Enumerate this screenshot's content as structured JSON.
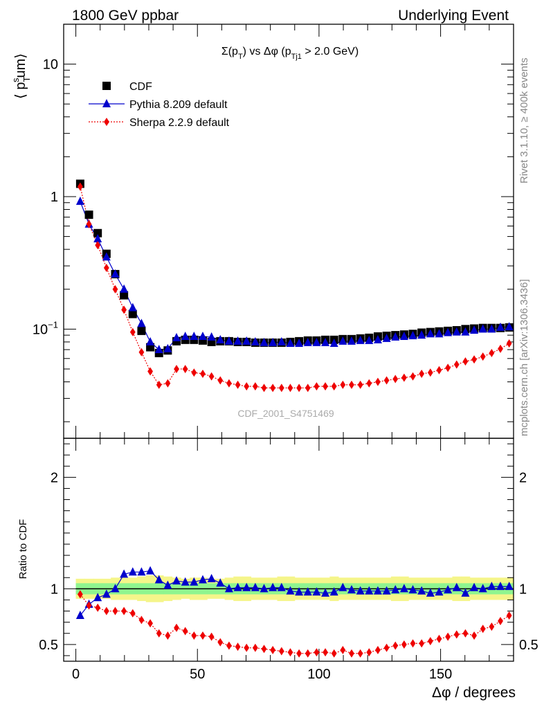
{
  "header": {
    "left": "1800 GeV ppbar",
    "right": "Underlying Event"
  },
  "side_labels": {
    "top": "Rivet 3.1.10, ≥ 400k events",
    "bottom": "mcplots.cern.ch [arXiv:1306.3436]"
  },
  "watermark": "CDF_2001_S4751469",
  "colors": {
    "data": "#000000",
    "pythia": "#0000cc",
    "sherpa": "#ee0000",
    "band_inner": "#8ff58f",
    "band_outer": "#f5f58a"
  },
  "chart_data": [
    {
      "type": "scatter",
      "title": "Σ(p_T) vs Δφ (p_Tj1 > 2.0 GeV)",
      "ylabel": "⟨ p_T^sum⟩",
      "yscale": "log",
      "ylim": [
        0.015,
        20
      ],
      "xlim": [
        -5,
        180
      ],
      "ytick_labels": [
        "10",
        "1",
        "10^-1"
      ],
      "legend": {
        "placement": "top-left",
        "entries": [
          "CDF",
          "Pythia 8.209 default",
          "Sherpa 2.2.9 default"
        ]
      },
      "x": [
        1.8,
        5.4,
        9.0,
        12.6,
        16.2,
        19.8,
        23.4,
        27.0,
        30.6,
        34.2,
        37.8,
        41.4,
        45.0,
        48.6,
        52.2,
        55.8,
        59.4,
        63.0,
        66.6,
        70.2,
        73.8,
        77.4,
        81.0,
        84.6,
        88.2,
        91.8,
        95.4,
        99.0,
        102.6,
        106.2,
        109.8,
        113.4,
        117.0,
        120.6,
        124.2,
        127.8,
        131.4,
        135.0,
        138.6,
        142.2,
        145.8,
        149.4,
        153.0,
        156.6,
        160.2,
        163.8,
        167.4,
        171.0,
        174.6,
        178.2
      ],
      "series": [
        {
          "name": "CDF",
          "marker": "square",
          "values": [
            1.25,
            0.73,
            0.53,
            0.37,
            0.26,
            0.18,
            0.13,
            0.097,
            0.073,
            0.066,
            0.069,
            0.081,
            0.083,
            0.083,
            0.082,
            0.08,
            0.081,
            0.081,
            0.08,
            0.08,
            0.079,
            0.079,
            0.079,
            0.079,
            0.08,
            0.081,
            0.082,
            0.082,
            0.083,
            0.083,
            0.084,
            0.084,
            0.085,
            0.086,
            0.088,
            0.089,
            0.09,
            0.091,
            0.092,
            0.094,
            0.095,
            0.096,
            0.097,
            0.098,
            0.1,
            0.101,
            0.102,
            0.102,
            0.102,
            0.103
          ]
        },
        {
          "name": "Pythia 8.209 default",
          "marker": "triangle",
          "values": [
            0.92,
            0.62,
            0.48,
            0.35,
            0.26,
            0.2,
            0.145,
            0.11,
            0.08,
            0.07,
            0.071,
            0.086,
            0.088,
            0.088,
            0.088,
            0.087,
            0.083,
            0.081,
            0.081,
            0.081,
            0.08,
            0.079,
            0.079,
            0.08,
            0.078,
            0.078,
            0.079,
            0.079,
            0.079,
            0.078,
            0.081,
            0.081,
            0.082,
            0.082,
            0.083,
            0.085,
            0.087,
            0.088,
            0.089,
            0.09,
            0.092,
            0.092,
            0.094,
            0.095,
            0.095,
            0.098,
            0.1,
            0.1,
            0.103,
            0.104
          ]
        },
        {
          "name": "Sherpa 2.2.9 default",
          "marker": "diamond",
          "values": [
            1.19,
            0.62,
            0.43,
            0.29,
            0.2,
            0.14,
            0.095,
            0.067,
            0.048,
            0.038,
            0.039,
            0.05,
            0.05,
            0.047,
            0.046,
            0.044,
            0.041,
            0.039,
            0.038,
            0.037,
            0.037,
            0.036,
            0.036,
            0.036,
            0.036,
            0.036,
            0.036,
            0.037,
            0.037,
            0.037,
            0.038,
            0.038,
            0.038,
            0.039,
            0.04,
            0.041,
            0.042,
            0.043,
            0.044,
            0.046,
            0.047,
            0.049,
            0.051,
            0.054,
            0.057,
            0.059,
            0.062,
            0.066,
            0.071,
            0.078
          ]
        }
      ]
    },
    {
      "type": "scatter",
      "ylabel": "Ratio to CDF",
      "xlabel": "Δφ / degrees",
      "ylim": [
        0.35,
        2.35
      ],
      "xlim": [
        -5,
        180
      ],
      "yticks": [
        0.5,
        1,
        2
      ],
      "xticks": [
        0,
        50,
        100,
        150
      ],
      "bands": {
        "inner": [
          0.95,
          1.05
        ],
        "outer_half_width": [
          0.09,
          0.09,
          0.09,
          0.09,
          0.1,
          0.1,
          0.1,
          0.11,
          0.12,
          0.12,
          0.11,
          0.1,
          0.09,
          0.1,
          0.1,
          0.09,
          0.09,
          0.1,
          0.11,
          0.11,
          0.1,
          0.1,
          0.1,
          0.11,
          0.11,
          0.1,
          0.1,
          0.1,
          0.1,
          0.11,
          0.1,
          0.1,
          0.1,
          0.1,
          0.1,
          0.1,
          0.11,
          0.11,
          0.1,
          0.1,
          0.1,
          0.1,
          0.1,
          0.11,
          0.11,
          0.1,
          0.1,
          0.1,
          0.1,
          0.1
        ]
      },
      "reference_line": 1,
      "series": [
        {
          "name": "Pythia 8.209 default",
          "marker": "triangle",
          "values": [
            0.76,
            0.86,
            0.92,
            0.95,
            1.0,
            1.13,
            1.15,
            1.15,
            1.16,
            1.08,
            1.03,
            1.07,
            1.06,
            1.06,
            1.08,
            1.09,
            1.05,
            1.0,
            1.01,
            1.01,
            1.01,
            1.0,
            1.01,
            1.01,
            0.98,
            0.97,
            0.97,
            0.97,
            0.96,
            0.97,
            1.01,
            0.99,
            0.98,
            0.98,
            0.98,
            0.98,
            0.99,
            1.0,
            0.99,
            0.98,
            0.96,
            0.97,
            0.99,
            1.01,
            0.96,
            1.01,
            1.0,
            1.02,
            1.02,
            1.02
          ]
        },
        {
          "name": "Sherpa 2.2.9 default",
          "marker": "diamond",
          "values": [
            0.95,
            0.85,
            0.83,
            0.8,
            0.8,
            0.8,
            0.78,
            0.72,
            0.69,
            0.6,
            0.58,
            0.65,
            0.62,
            0.58,
            0.58,
            0.57,
            0.52,
            0.49,
            0.48,
            0.47,
            0.47,
            0.46,
            0.45,
            0.44,
            0.43,
            0.42,
            0.42,
            0.43,
            0.43,
            0.42,
            0.45,
            0.42,
            0.42,
            0.43,
            0.45,
            0.47,
            0.49,
            0.5,
            0.51,
            0.51,
            0.53,
            0.55,
            0.57,
            0.59,
            0.6,
            0.58,
            0.64,
            0.66,
            0.71,
            0.76
          ]
        }
      ]
    }
  ]
}
